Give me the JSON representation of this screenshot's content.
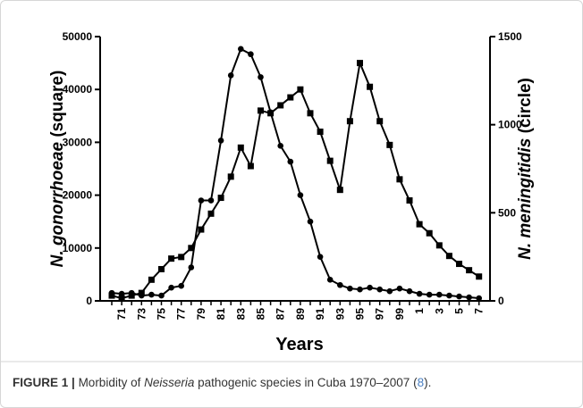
{
  "chart_data": {
    "type": "line",
    "ylabel_italic": "N. gonorrhoeae",
    "ylabel_rest": "(square)",
    "y2label_italic": "N. meningitidis",
    "y2label_rest": "(circle)",
    "xlabel": "Years",
    "categories": [
      null,
      "71",
      null,
      "73",
      null,
      "75",
      null,
      "77",
      null,
      "79",
      null,
      "81",
      null,
      "83",
      null,
      "85",
      null,
      "87",
      null,
      "89",
      null,
      "91",
      null,
      "93",
      null,
      "95",
      null,
      "97",
      null,
      "99",
      null,
      "1",
      null,
      "3",
      null,
      "5",
      null,
      "7"
    ],
    "ylim": [
      0,
      50000
    ],
    "yticks": [
      0,
      10000,
      20000,
      30000,
      40000,
      50000
    ],
    "y2lim": [
      0,
      1500
    ],
    "y2ticks": [
      0,
      500,
      1000,
      1500
    ],
    "series": [
      {
        "name": "square",
        "color": "#000000",
        "marker": "square",
        "values": [
          1000,
          500,
          1000,
          1500,
          4000,
          6000,
          8000,
          8300,
          10000,
          13500,
          16500,
          19500,
          23500,
          29000,
          25500,
          36000,
          35500,
          37000,
          38500,
          40000,
          35500,
          32000,
          26500,
          21000,
          34000,
          45000,
          40500,
          34000,
          29500,
          23000,
          19000,
          14500,
          12800,
          10500,
          8500,
          7000,
          5800,
          4600
        ]
      },
      {
        "name": "circle",
        "color": "#000000",
        "marker": "circle",
        "axis": "y2",
        "values": [
          45,
          40,
          45,
          30,
          35,
          30,
          75,
          85,
          190,
          570,
          570,
          910,
          1280,
          1430,
          1400,
          1270,
          1070,
          880,
          790,
          600,
          450,
          250,
          120,
          90,
          70,
          65,
          75,
          65,
          55,
          70,
          55,
          40,
          35,
          35,
          30,
          25,
          20,
          15
        ]
      }
    ]
  },
  "caption": {
    "label": "FIGURE 1 |",
    "pre": "Morbidity of ",
    "italic": "Neisseria",
    "post": " pathogenic species in Cuba 1970–2007 (",
    "ref": "8",
    "end": ")."
  }
}
